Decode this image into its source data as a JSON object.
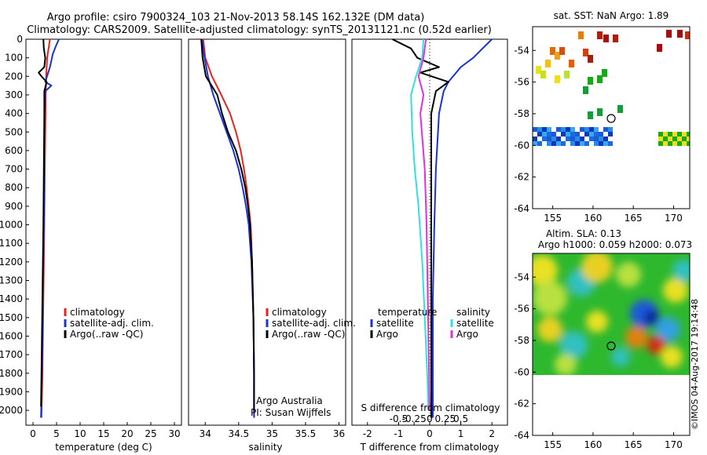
{
  "header": {
    "line1": "Argo profile: csiro 7900324_103 21-Nov-2013 58.14S 162.132E (DM data)",
    "line2": "Climatology: CARS2009. Satellite-adjusted climatology: synTS_20131121.nc (0.52d earlier)"
  },
  "colors": {
    "climatology": "#e8231c",
    "satellite": "#1a32d0",
    "argo": "#000000",
    "sat_salinity": "#33e0e0",
    "argo_salinity": "#e030e0"
  },
  "chart_data": [
    {
      "id": "temperature",
      "type": "line",
      "xlabel": "temperature (deg C)",
      "ylabel": "",
      "xlim": [
        -1.5,
        31.5
      ],
      "ylim": [
        2080,
        0
      ],
      "xticks": [
        0,
        5,
        10,
        15,
        20,
        25,
        30
      ],
      "yticks": [
        0,
        100,
        200,
        300,
        400,
        500,
        600,
        700,
        800,
        900,
        1000,
        1100,
        1200,
        1300,
        1400,
        1500,
        1600,
        1700,
        1800,
        1900,
        2000
      ],
      "legend": {
        "location": "lower-middle",
        "entries": [
          "climatology",
          "satellite-adj. clim.",
          "Argo(..raw -QC)"
        ]
      },
      "series": [
        {
          "name": "climatology",
          "color": "#e8231c",
          "points": [
            [
              3.6,
              0
            ],
            [
              3.3,
              50
            ],
            [
              3.0,
              100
            ],
            [
              2.8,
              200
            ],
            [
              2.7,
              300
            ],
            [
              2.6,
              500
            ],
            [
              2.5,
              700
            ],
            [
              2.4,
              1000
            ],
            [
              2.2,
              1400
            ],
            [
              2.0,
              1800
            ],
            [
              1.8,
              2040
            ]
          ]
        },
        {
          "name": "satellite-adj. clim.",
          "color": "#1a32d0",
          "points": [
            [
              5.5,
              0
            ],
            [
              4.8,
              40
            ],
            [
              4.2,
              80
            ],
            [
              3.6,
              150
            ],
            [
              2.6,
              230
            ],
            [
              3.9,
              250
            ],
            [
              2.6,
              280
            ],
            [
              2.5,
              400
            ],
            [
              2.4,
              700
            ],
            [
              2.3,
              1000
            ],
            [
              2.1,
              1400
            ],
            [
              1.9,
              1800
            ],
            [
              1.7,
              2040
            ]
          ]
        },
        {
          "name": "Argo(..raw -QC)",
          "color": "#000000",
          "points": [
            [
              2.2,
              0
            ],
            [
              2.3,
              50
            ],
            [
              2.6,
              100
            ],
            [
              2.4,
              150
            ],
            [
              1.2,
              180
            ],
            [
              1.8,
              200
            ],
            [
              2.9,
              230
            ],
            [
              2.4,
              280
            ],
            [
              2.4,
              400
            ],
            [
              2.3,
              700
            ],
            [
              2.2,
              1000
            ],
            [
              2.0,
              1400
            ],
            [
              1.8,
              1800
            ],
            [
              1.7,
              1980
            ]
          ]
        }
      ]
    },
    {
      "id": "salinity",
      "type": "line",
      "xlabel": "salinity",
      "xlim": [
        33.75,
        36.1
      ],
      "ylim": [
        2080,
        0
      ],
      "xticks": [
        34,
        34.5,
        35,
        35.5,
        36
      ],
      "legend": {
        "location": "lower-right",
        "entries": [
          "climatology",
          "satellite-adj. clim.",
          "Argo(..raw -QC)"
        ]
      },
      "annotations": [
        "Argo Australia",
        "PI: Susan Wijffels"
      ],
      "series": [
        {
          "name": "climatology",
          "color": "#e8231c",
          "points": [
            [
              33.97,
              0
            ],
            [
              34.0,
              100
            ],
            [
              34.1,
              200
            ],
            [
              34.24,
              300
            ],
            [
              34.37,
              400
            ],
            [
              34.46,
              500
            ],
            [
              34.53,
              600
            ],
            [
              34.58,
              700
            ],
            [
              34.62,
              800
            ],
            [
              34.65,
              900
            ],
            [
              34.68,
              1000
            ],
            [
              34.7,
              1200
            ],
            [
              34.72,
              1500
            ],
            [
              34.73,
              1800
            ],
            [
              34.73,
              2040
            ]
          ]
        },
        {
          "name": "satellite-adj. clim.",
          "color": "#1a32d0",
          "points": [
            [
              33.95,
              0
            ],
            [
              33.99,
              100
            ],
            [
              34.04,
              200
            ],
            [
              34.12,
              300
            ],
            [
              34.22,
              400
            ],
            [
              34.32,
              500
            ],
            [
              34.42,
              600
            ],
            [
              34.5,
              700
            ],
            [
              34.56,
              800
            ],
            [
              34.61,
              900
            ],
            [
              34.65,
              1000
            ],
            [
              34.69,
              1200
            ],
            [
              34.72,
              1500
            ],
            [
              34.73,
              1800
            ],
            [
              34.73,
              2040
            ]
          ]
        },
        {
          "name": "Argo(..raw -QC)",
          "color": "#000000",
          "points": [
            [
              33.94,
              0
            ],
            [
              33.96,
              100
            ],
            [
              34.01,
              200
            ],
            [
              34.18,
              300
            ],
            [
              34.25,
              400
            ],
            [
              34.34,
              500
            ],
            [
              34.46,
              600
            ],
            [
              34.54,
              700
            ],
            [
              34.6,
              800
            ],
            [
              34.64,
              900
            ],
            [
              34.67,
              1000
            ],
            [
              34.7,
              1200
            ],
            [
              34.72,
              1500
            ],
            [
              34.73,
              1800
            ],
            [
              34.73,
              2000
            ]
          ]
        }
      ]
    },
    {
      "id": "difference",
      "type": "line",
      "xlabel": "T difference from climatology",
      "xlabel_top": "S difference from climatology",
      "xlim": [
        -2.5,
        2.5
      ],
      "ylim": [
        2080,
        0
      ],
      "xticks": [
        -2,
        -1,
        0,
        1,
        2
      ],
      "xticks_salinity": [
        -0.5,
        -0.25,
        0,
        0.25,
        0.5
      ],
      "legend": {
        "location": "lower-middle",
        "groups": [
          {
            "title": "temperature",
            "entries": [
              "satellite",
              "Argo"
            ]
          },
          {
            "title": "salinity",
            "entries": [
              "satellite",
              "Argo"
            ]
          }
        ]
      },
      "series": [
        {
          "name": "satellite",
          "group": "temperature",
          "color": "#1a32d0",
          "points": [
            [
              2.0,
              0
            ],
            [
              1.7,
              50
            ],
            [
              1.4,
              100
            ],
            [
              1.0,
              150
            ],
            [
              0.6,
              230
            ],
            [
              0.45,
              280
            ],
            [
              0.3,
              400
            ],
            [
              0.2,
              700
            ],
            [
              0.15,
              1000
            ],
            [
              0.1,
              1400
            ],
            [
              0.1,
              1800
            ],
            [
              0.1,
              2040
            ]
          ]
        },
        {
          "name": "Argo",
          "group": "temperature",
          "color": "#000000",
          "points": [
            [
              -1.2,
              0
            ],
            [
              -0.6,
              50
            ],
            [
              -0.4,
              100
            ],
            [
              0.3,
              150
            ],
            [
              -0.3,
              180
            ],
            [
              0.6,
              230
            ],
            [
              0.2,
              280
            ],
            [
              0.05,
              400
            ],
            [
              0.05,
              700
            ],
            [
              0.05,
              1000
            ],
            [
              0.05,
              1400
            ],
            [
              0.05,
              1800
            ],
            [
              0.05,
              2040
            ]
          ]
        },
        {
          "name": "satellite",
          "group": "salinity",
          "color": "#33e0e0",
          "points": [
            [
              -0.1,
              0
            ],
            [
              -0.12,
              100
            ],
            [
              -0.22,
              200
            ],
            [
              -0.3,
              300
            ],
            [
              -0.28,
              500
            ],
            [
              -0.24,
              700
            ],
            [
              -0.18,
              900
            ],
            [
              -0.12,
              1200
            ],
            [
              -0.08,
              1500
            ],
            [
              -0.04,
              1800
            ],
            [
              -0.02,
              2000
            ]
          ]
        },
        {
          "name": "Argo",
          "group": "salinity",
          "color": "#e030e0",
          "points": [
            [
              -0.06,
              0
            ],
            [
              -0.1,
              100
            ],
            [
              -0.18,
              200
            ],
            [
              -0.1,
              300
            ],
            [
              -0.15,
              400
            ],
            [
              -0.08,
              700
            ],
            [
              -0.05,
              1000
            ],
            [
              -0.03,
              1400
            ],
            [
              -0.01,
              1800
            ],
            [
              0.0,
              2000
            ]
          ]
        }
      ]
    },
    {
      "id": "sst_map",
      "type": "heatmap",
      "title": "sat. SST: NaN Argo: 1.89",
      "xlim": [
        152.5,
        172
      ],
      "ylim": [
        -64,
        -52.5
      ],
      "xticks": [
        155,
        160,
        165,
        170
      ],
      "yticks": [
        -54,
        -56,
        -58,
        -60,
        -62,
        -64
      ],
      "argo_position": [
        162.132,
        -58.14
      ]
    },
    {
      "id": "sla_map",
      "type": "heatmap",
      "title_line1": "Altim. SLA: 0.13",
      "title_line2": "Argo h1000: 0.059 h2000: 0.073",
      "xlim": [
        152.5,
        172
      ],
      "ylim": [
        -64,
        -52.5
      ],
      "xticks": [
        155,
        160,
        165,
        170
      ],
      "yticks": [
        -54,
        -56,
        -58,
        -60,
        -62,
        -64
      ],
      "argo_position": [
        162.132,
        -58.14
      ]
    }
  ],
  "watermark": "©IMOS 04-Aug-2017 19:14:48"
}
